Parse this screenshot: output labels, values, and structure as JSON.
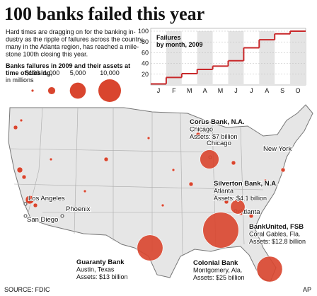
{
  "header": {
    "title": "100 banks failed this year",
    "intro": [
      "Hard times are dragging on for the banking in-",
      "dustry as the ripple of failures across the country,",
      "many in the Atlanta region, has reached a mile-",
      "stone 100th closing this year."
    ]
  },
  "legend": {
    "title": [
      "Banks failures in 2009 and their assets at",
      "time of closing,"
    ],
    "unit": "in millions",
    "sizes": [
      {
        "value": 100,
        "label": "$100"
      },
      {
        "value": 1000,
        "label": "1,000"
      },
      {
        "value": 5000,
        "label": "5,000"
      },
      {
        "value": 10000,
        "label": "10,000"
      }
    ],
    "color": "#d9452e"
  },
  "chart_data": {
    "type": "step",
    "title": [
      "Failures",
      "by month, 2009"
    ],
    "categories": [
      "J",
      "F",
      "M",
      "A",
      "M",
      "J",
      "J",
      "A",
      "S",
      "O"
    ],
    "values": [
      2,
      14,
      21,
      29,
      35,
      45,
      69,
      84,
      95,
      100
    ],
    "ylim": [
      0,
      100
    ],
    "yticks": [
      20,
      40,
      60,
      80,
      100
    ],
    "color": "#c8282a",
    "grid": true
  },
  "cities": [
    "Chicago",
    "New York",
    "Los Angeles",
    "Phoenix",
    "San Diego",
    "Atlanta"
  ],
  "banks": [
    {
      "name": "Corus Bank, N.A.",
      "city": "Chicago",
      "assets_label": "Assets: $7 billion",
      "assets": 7000
    },
    {
      "name": "Silverton Bank, N.A.",
      "city": "Atlanta",
      "assets_label": "Assets: $4.1 billion",
      "assets": 4100
    },
    {
      "name": "BankUnited, FSB",
      "city": "Coral Gables, Fla.",
      "assets_label": "Assets: $12.8 billion",
      "assets": 12800
    },
    {
      "name": "Guaranty Bank",
      "city": "Austin, Texas",
      "assets_label": "Assets: $13 billion",
      "assets": 13000
    },
    {
      "name": "Colonial Bank",
      "city": "Montgomery, Ala.",
      "assets_label": "Assets: $25 billion",
      "assets": 25000
    }
  ],
  "footer": {
    "source": "SOURCE: FDIC",
    "credit": "AP"
  }
}
